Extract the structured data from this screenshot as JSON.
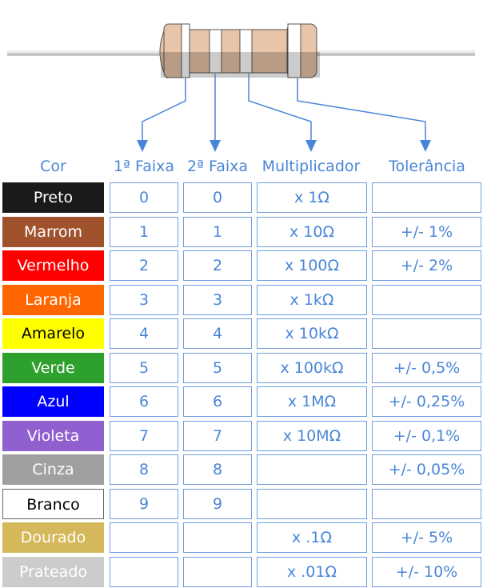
{
  "headers": {
    "cor": "Cor",
    "faixa1": "1ª Faixa",
    "faixa2": "2ª Faixa",
    "multiplicador": "Multiplicador",
    "tolerancia": "Tolerância"
  },
  "colors": {
    "accent": "#4a86d8",
    "resistor_body": "#e8c4a8",
    "band": "#ffffff"
  },
  "rows": [
    {
      "name": "Preto",
      "bg": "#1a1a1a",
      "fg": "#ffffff",
      "d1": "0",
      "d2": "0",
      "mult": "x 1Ω",
      "tol": ""
    },
    {
      "name": "Marrom",
      "bg": "#a0522d",
      "fg": "#ffffff",
      "d1": "1",
      "d2": "1",
      "mult": "x 10Ω",
      "tol": "+/- 1%"
    },
    {
      "name": "Vermelho",
      "bg": "#ff0000",
      "fg": "#ffffff",
      "d1": "2",
      "d2": "2",
      "mult": "x 100Ω",
      "tol": "+/- 2%"
    },
    {
      "name": "Laranja",
      "bg": "#ff6600",
      "fg": "#ffffff",
      "d1": "3",
      "d2": "3",
      "mult": "x 1kΩ",
      "tol": ""
    },
    {
      "name": "Amarelo",
      "bg": "#ffff00",
      "fg": "#000000",
      "d1": "4",
      "d2": "4",
      "mult": "x 10kΩ",
      "tol": ""
    },
    {
      "name": "Verde",
      "bg": "#2ea02e",
      "fg": "#ffffff",
      "d1": "5",
      "d2": "5",
      "mult": "x 100kΩ",
      "tol": "+/- 0,5%"
    },
    {
      "name": "Azul",
      "bg": "#0000ff",
      "fg": "#ffffff",
      "d1": "6",
      "d2": "6",
      "mult": "x 1MΩ",
      "tol": "+/- 0,25%"
    },
    {
      "name": "Violeta",
      "bg": "#9060d0",
      "fg": "#ffffff",
      "d1": "7",
      "d2": "7",
      "mult": "x 10MΩ",
      "tol": "+/- 0,1%"
    },
    {
      "name": "Cinza",
      "bg": "#a0a0a0",
      "fg": "#ffffff",
      "d1": "8",
      "d2": "8",
      "mult": "",
      "tol": "+/- 0,05%"
    },
    {
      "name": "Branco",
      "bg": "#ffffff",
      "fg": "#000000",
      "d1": "9",
      "d2": "9",
      "mult": "",
      "tol": ""
    },
    {
      "name": "Dourado",
      "bg": "#d4b85a",
      "fg": "#ffffff",
      "d1": "",
      "d2": "",
      "mult": "x .1Ω",
      "tol": "+/- 5%"
    },
    {
      "name": "Prateado",
      "bg": "#cccccc",
      "fg": "#ffffff",
      "d1": "",
      "d2": "",
      "mult": "x .01Ω",
      "tol": "+/- 10%"
    }
  ]
}
